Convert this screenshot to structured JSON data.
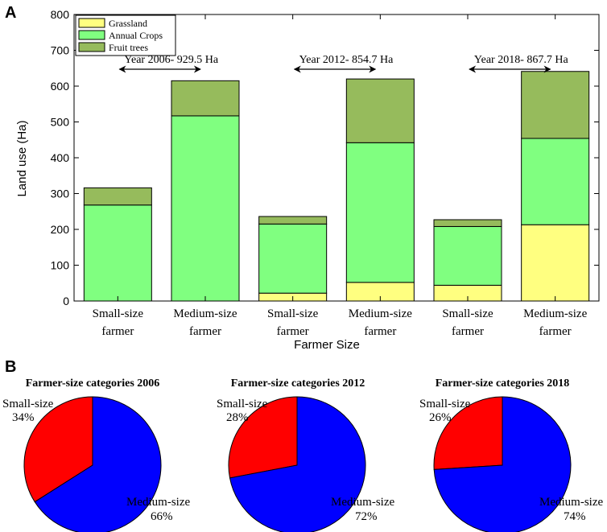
{
  "panels": {
    "a": "A",
    "b": "B"
  },
  "chart_data": [
    {
      "type": "bar",
      "stacked": true,
      "title": "",
      "xlabel": "Farmer Size",
      "ylabel": "Land use (Ha)",
      "ylim": [
        0,
        800
      ],
      "yticks": [
        0,
        100,
        200,
        300,
        400,
        500,
        600,
        700,
        800
      ],
      "categories": [
        {
          "line1": "Small-size",
          "line2": "farmer"
        },
        {
          "line1": "Medium-size",
          "line2": "farmer"
        },
        {
          "line1": "Small-size",
          "line2": "farmer"
        },
        {
          "line1": "Medium-size",
          "line2": "farmer"
        },
        {
          "line1": "Small-size",
          "line2": "farmer"
        },
        {
          "line1": "Medium-size",
          "line2": "farmer"
        }
      ],
      "series": [
        {
          "name": "Grassland",
          "color": "#ffff80",
          "values": [
            0,
            0,
            22,
            52,
            44,
            213
          ]
        },
        {
          "name": "Annual Crops",
          "color": "#80ff80",
          "values": [
            268,
            517,
            193,
            390,
            164,
            241
          ]
        },
        {
          "name": "Fruit trees",
          "color": "#96bb5c",
          "values": [
            48,
            98,
            21,
            178,
            19,
            187
          ]
        }
      ],
      "legend_position": "top-left",
      "annotations": [
        {
          "text": "Year 2006- 929.5 Ha",
          "bars": [
            0,
            1
          ]
        },
        {
          "text": "Year 2012- 854.7 Ha",
          "bars": [
            2,
            3
          ]
        },
        {
          "text": "Year 2018- 867.7 Ha",
          "bars": [
            4,
            5
          ]
        }
      ]
    },
    {
      "type": "pie",
      "title": "Farmer-size categories 2006",
      "slices": [
        {
          "label": "Small-size",
          "pct_label": "34%",
          "value": 34,
          "color": "#ff0000"
        },
        {
          "label": "Medium-size",
          "pct_label": "66%",
          "value": 66,
          "color": "#0000ff"
        }
      ]
    },
    {
      "type": "pie",
      "title": "Farmer-size categories 2012",
      "slices": [
        {
          "label": "Small-size",
          "pct_label": "28%",
          "value": 28,
          "color": "#ff0000"
        },
        {
          "label": "Medium-size",
          "pct_label": "72%",
          "value": 72,
          "color": "#0000ff"
        }
      ]
    },
    {
      "type": "pie",
      "title": "Farmer-size categories 2018",
      "slices": [
        {
          "label": "Small-size",
          "pct_label": "26%",
          "value": 26,
          "color": "#ff0000"
        },
        {
          "label": "Medium-size",
          "pct_label": "74%",
          "value": 74,
          "color": "#0000ff"
        }
      ]
    }
  ]
}
